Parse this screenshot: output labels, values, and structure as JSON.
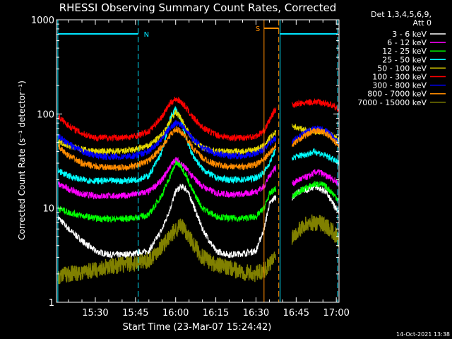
{
  "chart_data": {
    "type": "line",
    "title": "RHESSI Observing Summary Count Rates, Corrected",
    "xlabel": "Start Time (23-Mar-07 15:24:42)",
    "ylabel": "Corrected Count Rate (s⁻¹ detector⁻¹)",
    "yscale": "log",
    "ylim": [
      1,
      1000
    ],
    "xlim_minutes": [
      15.5,
      121
    ],
    "x_ticks": [
      {
        "label": "15:30",
        "min": 30
      },
      {
        "label": "15:45",
        "min": 45
      },
      {
        "label": "16:00",
        "min": 60
      },
      {
        "label": "16:15",
        "min": 75
      },
      {
        "label": "16:30",
        "min": 90
      },
      {
        "label": "16:45",
        "min": 105
      },
      {
        "label": "17:00",
        "min": 120
      }
    ],
    "y_ticks": [
      {
        "label": "1",
        "v": 1
      },
      {
        "label": "10",
        "v": 10
      },
      {
        "label": "100",
        "v": 100
      },
      {
        "label": "1000",
        "v": 1000
      }
    ],
    "legend_header": [
      "Det 1,3,4,5,6,9,",
      "Att 0"
    ],
    "legend_position": "right",
    "data_gap_minutes": [
      97.5,
      103.5
    ],
    "markers": [
      {
        "label": "N",
        "color": "#00e5ff",
        "bar_minutes": [
          16,
          46
        ],
        "line_minutes": [
          16,
          46
        ]
      },
      {
        "label": "S",
        "color": "#ff8c00",
        "bar_minutes": [
          93,
          98.5
        ],
        "line_minutes": [
          93,
          98.5
        ]
      },
      {
        "label": "",
        "color": "#00e5ff",
        "bar_minutes": [
          99,
          120.5
        ],
        "line_minutes": [
          99,
          120.5
        ]
      }
    ],
    "series": [
      {
        "name": "3 - 6 keV",
        "color": "#ffffff",
        "x": [
          16,
          20,
          25,
          30,
          35,
          40,
          45,
          50,
          55,
          58,
          60,
          62,
          64,
          66,
          70,
          75,
          80,
          85,
          90,
          93,
          95,
          97,
          103.5,
          106,
          110,
          112,
          114,
          116,
          118,
          120,
          121
        ],
        "y": [
          8,
          6,
          4.5,
          3.5,
          3.2,
          3.2,
          3.3,
          3.5,
          6,
          10,
          15,
          17,
          16,
          12,
          6,
          3.5,
          3.2,
          3.3,
          3.5,
          6,
          11,
          13,
          13,
          15,
          16,
          17,
          16,
          15,
          12,
          10,
          9
        ]
      },
      {
        "name": "6 - 12 keV",
        "color": "#ff00ff",
        "x": [
          16,
          20,
          25,
          30,
          35,
          40,
          45,
          50,
          55,
          58,
          60,
          62,
          64,
          66,
          70,
          75,
          80,
          85,
          90,
          93,
          95,
          97,
          103.5,
          106,
          110,
          112,
          114,
          116,
          118,
          120,
          121
        ],
        "y": [
          18,
          16,
          14,
          13.5,
          13.5,
          13.5,
          14,
          15,
          20,
          28,
          33,
          30,
          26,
          22,
          17,
          14.5,
          14,
          14,
          15,
          17,
          22,
          27,
          18,
          20,
          22,
          24,
          24,
          22,
          21,
          19,
          18
        ]
      },
      {
        "name": "12 - 25 keV",
        "color": "#00ff00",
        "x": [
          16,
          20,
          25,
          30,
          35,
          40,
          45,
          50,
          55,
          58,
          60,
          62,
          64,
          66,
          70,
          75,
          80,
          85,
          90,
          93,
          95,
          97,
          103.5,
          106,
          110,
          112,
          114,
          116,
          118,
          120,
          121
        ],
        "y": [
          10,
          9,
          8.3,
          7.8,
          7.7,
          7.7,
          7.9,
          8.5,
          14,
          22,
          30,
          28,
          22,
          16,
          10,
          8.2,
          7.8,
          7.8,
          8.1,
          10,
          14,
          16,
          13,
          15,
          17,
          18,
          18,
          17,
          15,
          13,
          12
        ]
      },
      {
        "name": "25 - 50 keV",
        "color": "#00ffff",
        "x": [
          16,
          20,
          25,
          30,
          35,
          40,
          45,
          50,
          55,
          58,
          60,
          62,
          64,
          66,
          70,
          75,
          80,
          85,
          90,
          93,
          95,
          97,
          103.5,
          106,
          110,
          112,
          114,
          116,
          118,
          120,
          121
        ],
        "y": [
          25,
          22,
          20,
          19.5,
          19.5,
          19.5,
          20,
          22,
          40,
          90,
          115,
          85,
          55,
          38,
          26,
          21,
          20,
          20,
          21,
          24,
          30,
          40,
          34,
          36,
          38,
          40,
          38,
          36,
          34,
          31,
          30
        ]
      },
      {
        "name": "50 - 100 keV",
        "color": "#e6d800",
        "x": [
          16,
          20,
          25,
          30,
          35,
          40,
          45,
          50,
          55,
          58,
          60,
          62,
          64,
          66,
          70,
          75,
          80,
          85,
          90,
          93,
          95,
          97,
          103.5,
          106,
          110,
          112,
          114,
          116,
          118,
          120,
          121
        ],
        "y": [
          52,
          46,
          42,
          40,
          40,
          40,
          42,
          46,
          60,
          85,
          105,
          90,
          70,
          55,
          44,
          40,
          40,
          40,
          42,
          46,
          55,
          62,
          75,
          70,
          66,
          65,
          65,
          64,
          60,
          55,
          52
        ]
      },
      {
        "name": "100 - 300 keV",
        "color": "#ff0000",
        "x": [
          16,
          20,
          25,
          30,
          35,
          40,
          45,
          50,
          55,
          58,
          60,
          62,
          64,
          66,
          70,
          75,
          80,
          85,
          90,
          93,
          95,
          97,
          103.5,
          106,
          110,
          112,
          114,
          116,
          118,
          120,
          121
        ],
        "y": [
          95,
          75,
          62,
          56,
          56,
          56,
          58,
          65,
          95,
          130,
          145,
          135,
          115,
          95,
          72,
          60,
          56,
          56,
          58,
          66,
          85,
          110,
          125,
          128,
          133,
          135,
          133,
          130,
          125,
          115,
          110
        ]
      },
      {
        "name": "300 - 800 keV",
        "color": "#0000ff",
        "x": [
          16,
          20,
          25,
          30,
          35,
          40,
          45,
          50,
          55,
          58,
          60,
          62,
          64,
          66,
          70,
          75,
          80,
          85,
          90,
          93,
          95,
          97,
          103.5,
          106,
          110,
          112,
          114,
          116,
          118,
          120,
          121
        ],
        "y": [
          58,
          48,
          40,
          36,
          35,
          35,
          36,
          40,
          55,
          72,
          80,
          78,
          68,
          56,
          44,
          38,
          36,
          36,
          38,
          42,
          48,
          55,
          50,
          58,
          66,
          70,
          70,
          66,
          60,
          52,
          50
        ]
      },
      {
        "name": "800 - 7000 keV",
        "color": "#ff8c00",
        "x": [
          16,
          20,
          25,
          30,
          35,
          40,
          45,
          50,
          55,
          58,
          60,
          62,
          64,
          66,
          70,
          75,
          80,
          85,
          90,
          93,
          95,
          97,
          103.5,
          106,
          110,
          112,
          114,
          116,
          118,
          120,
          121
        ],
        "y": [
          45,
          36,
          30,
          27.5,
          27,
          27,
          28,
          32,
          45,
          60,
          68,
          65,
          56,
          45,
          34,
          29,
          27.5,
          27.5,
          29,
          33,
          38,
          45,
          46,
          54,
          62,
          66,
          66,
          62,
          56,
          49,
          47
        ]
      },
      {
        "name": "7000 - 15000 keV",
        "color": "#808000",
        "x": [
          16,
          20,
          25,
          30,
          35,
          40,
          45,
          50,
          55,
          58,
          60,
          62,
          64,
          66,
          70,
          75,
          80,
          85,
          90,
          93,
          95,
          97,
          103.5,
          106,
          110,
          112,
          114,
          116,
          118,
          120,
          121
        ],
        "y": [
          1.9,
          2,
          2.1,
          2.2,
          2.4,
          2.5,
          2.6,
          2.8,
          4,
          5,
          6,
          6.5,
          5.5,
          4.5,
          3,
          2.5,
          2.3,
          2.1,
          2,
          2.2,
          2.5,
          3,
          5,
          6,
          7,
          7,
          7,
          6.5,
          6,
          5,
          4.5
        ]
      }
    ]
  },
  "footer_date": "14-Oct-2021 13:38"
}
